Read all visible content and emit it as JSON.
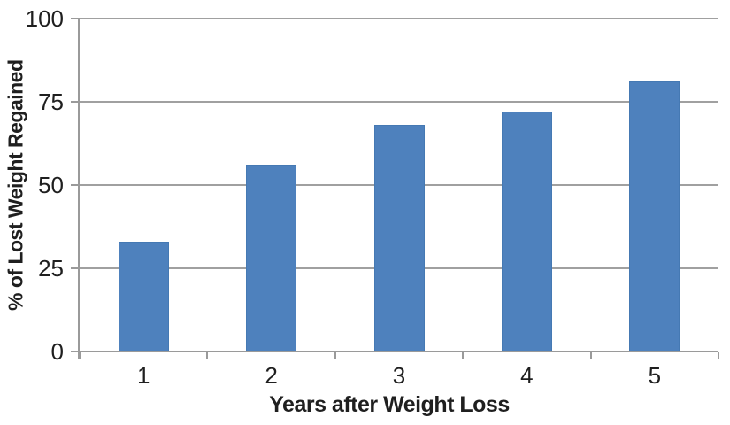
{
  "chart_data": {
    "type": "bar",
    "title": "",
    "categories": [
      "1",
      "2",
      "3",
      "4",
      "5"
    ],
    "values": [
      33,
      56,
      68,
      72,
      81
    ],
    "xlabel": "Years after Weight Loss",
    "ylabel": "% of Lost Weight Regained",
    "ylim": [
      0,
      100
    ],
    "yticks": [
      0,
      25,
      50,
      75,
      100
    ],
    "grid": "horizontal",
    "legend": "none",
    "bar_color": "#4e81bd",
    "axis_color": "#9a9a9a",
    "gridline_color": "#a0a0a0",
    "text_color": "#1f1f1f"
  }
}
